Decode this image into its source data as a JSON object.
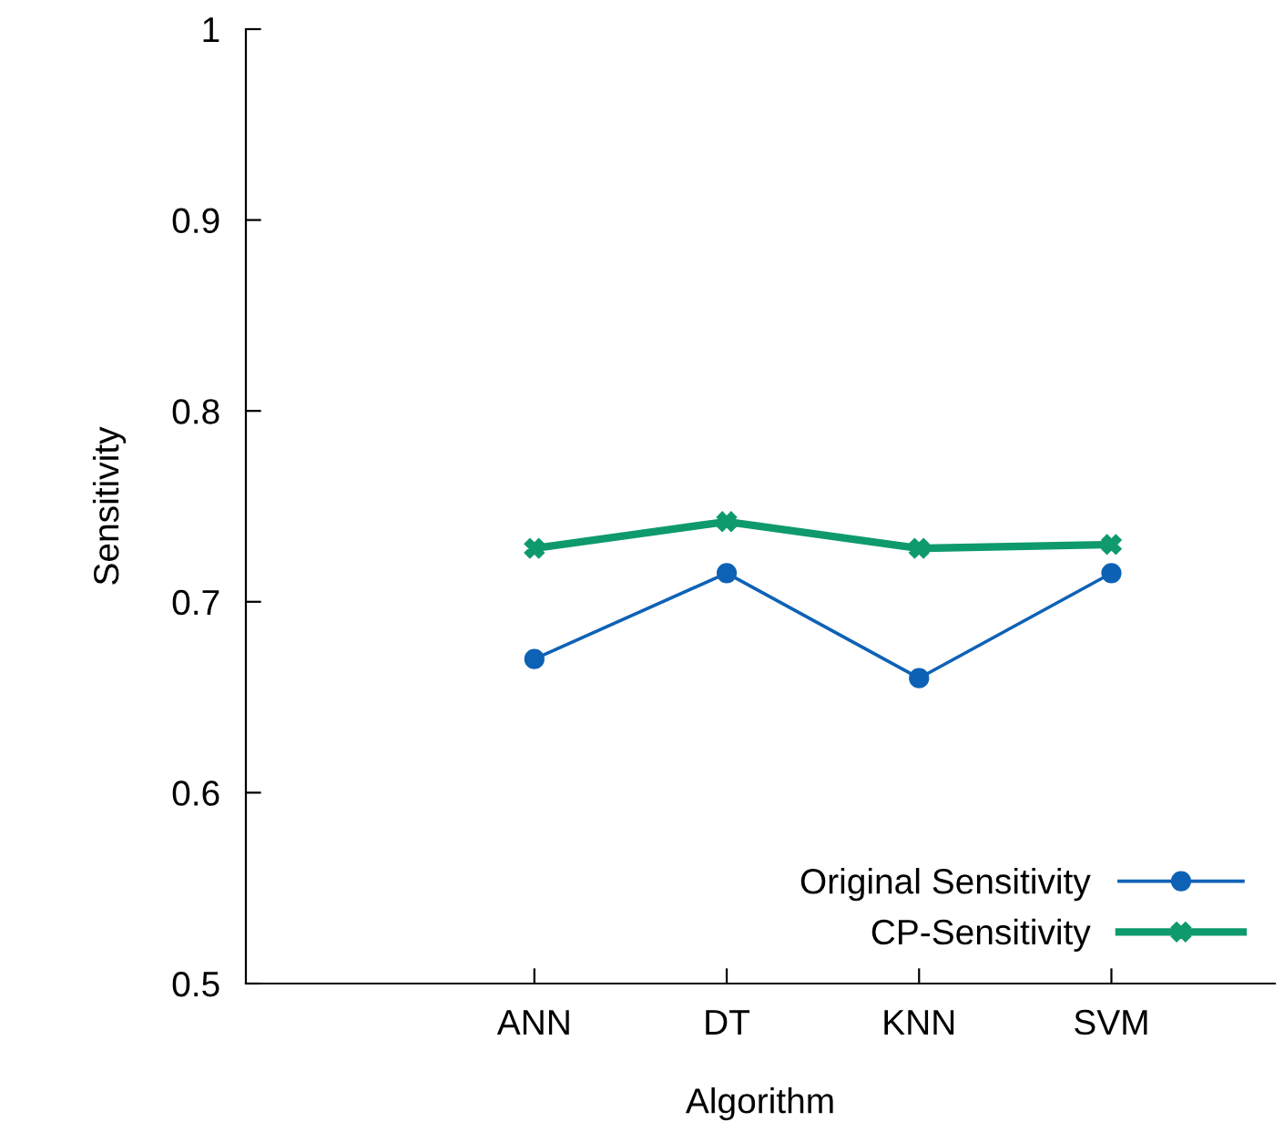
{
  "chart_data": {
    "type": "line",
    "xlabel": "Algorithm",
    "ylabel": "Sensitivity",
    "categories": [
      "ANN",
      "DT",
      "KNN",
      "SVM"
    ],
    "series": [
      {
        "name": "Original Sensitivity",
        "color": "#0e62b5",
        "values": [
          0.67,
          0.715,
          0.66,
          0.715
        ],
        "marker": "circle"
      },
      {
        "name": "CP-Sensitivity",
        "color": "#0f9a6e",
        "values": [
          0.728,
          0.742,
          0.728,
          0.73
        ],
        "marker": "cross"
      }
    ],
    "ylim": [
      0.5,
      1
    ],
    "yticks": [
      0.5,
      0.6,
      0.7,
      0.8,
      0.9,
      1
    ],
    "grid": false,
    "legend": "bottom right"
  }
}
